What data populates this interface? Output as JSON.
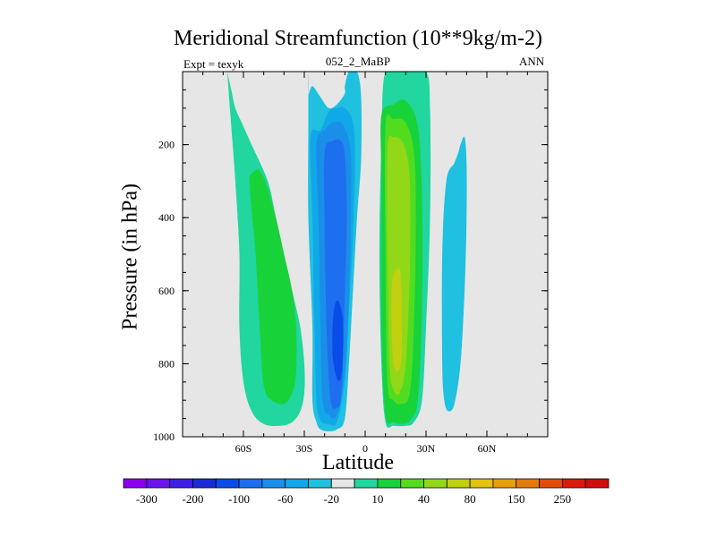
{
  "chart_data": {
    "type": "contour",
    "title": "Meridional Streamfunction (10**9kg/m-2)",
    "left_string": "Expt = texyk",
    "center_string": "052_2_MaBP",
    "right_string": "ANN",
    "xlabel": "Latitude",
    "ylabel": "Pressure (in hPa)",
    "xlim": [
      -90,
      90
    ],
    "ylim": [
      1000,
      0
    ],
    "x_ticks": [
      {
        "value": -60,
        "label": "60S"
      },
      {
        "value": -30,
        "label": "30S"
      },
      {
        "value": 0,
        "label": "0"
      },
      {
        "value": 30,
        "label": "30N"
      },
      {
        "value": 60,
        "label": "60N"
      }
    ],
    "y_ticks": [
      {
        "value": 200,
        "label": "200"
      },
      {
        "value": 400,
        "label": "400"
      },
      {
        "value": 600,
        "label": "600"
      },
      {
        "value": 800,
        "label": "800"
      },
      {
        "value": 1000,
        "label": "1000"
      }
    ],
    "missing_color": "#e6e6e6",
    "colorbar": {
      "levels": [
        -300,
        -250,
        -200,
        -150,
        -100,
        -80,
        -60,
        -40,
        -20,
        -10,
        10,
        20,
        40,
        60,
        80,
        100,
        150,
        200,
        250,
        300
      ],
      "labels": [
        "-300",
        "-200",
        "-100",
        "-60",
        "-20",
        "10",
        "40",
        "80",
        "150",
        "250"
      ],
      "colors": [
        "#8c00f0",
        "#6a12ec",
        "#3c1ee8",
        "#1a2ad8",
        "#0a4ce8",
        "#1e6ef0",
        "#1a8ee8",
        "#10a8e8",
        "#20c0e0",
        "#e6e6e6",
        "#22d6a0",
        "#18d23a",
        "#52dc20",
        "#92d818",
        "#c2d010",
        "#e2c20c",
        "#e8a00a",
        "#e47c0a",
        "#e24c0a",
        "#dc1a0a",
        "#d00c0c"
      ]
    },
    "cells": [
      {
        "name": "southern-positive-cell",
        "color_index": 10,
        "lat": [
          -68,
          -66,
          -64,
          -60,
          -56,
          -48,
          -44,
          -40,
          -36,
          -32,
          -30,
          -30,
          -32,
          -36,
          -42,
          -50,
          -56,
          -60,
          -62,
          -62,
          -64,
          -66,
          -68
        ],
        "p": [
          0,
          50,
          100,
          150,
          200,
          300,
          400,
          500,
          600,
          700,
          800,
          880,
          930,
          960,
          970,
          965,
          930,
          850,
          700,
          500,
          300,
          150,
          0
        ]
      },
      {
        "name": "southern-positive-core",
        "color_index": 11,
        "lat": [
          -56,
          -52,
          -48,
          -44,
          -40,
          -36,
          -34,
          -34,
          -36,
          -40,
          -46,
          -50,
          -52,
          -54,
          -56,
          -57
        ],
        "p": [
          280,
          270,
          320,
          400,
          500,
          600,
          700,
          820,
          880,
          910,
          900,
          860,
          700,
          500,
          380,
          300
        ]
      },
      {
        "name": "southern-negative-outer",
        "color_index": 8,
        "lat": [
          -28,
          -28,
          -26,
          -22,
          -18,
          -14,
          -10,
          -10,
          -8,
          -4,
          -2,
          -2,
          -4,
          -6,
          -8,
          -10,
          -14,
          -18,
          -22,
          -24,
          -26,
          -26,
          -28,
          -28
        ],
        "p": [
          0,
          60,
          40,
          70,
          100,
          90,
          60,
          40,
          0,
          0,
          70,
          240,
          400,
          600,
          800,
          950,
          980,
          985,
          980,
          960,
          900,
          700,
          400,
          150
        ]
      },
      {
        "name": "southern-negative-2",
        "color_index": 7,
        "lat": [
          -27,
          -22,
          -18,
          -14,
          -10,
          -6,
          -5,
          -6,
          -8,
          -10,
          -14,
          -18,
          -22,
          -24,
          -25,
          -26
        ],
        "p": [
          180,
          160,
          110,
          100,
          100,
          140,
          250,
          450,
          650,
          850,
          960,
          965,
          955,
          900,
          700,
          400
        ]
      },
      {
        "name": "southern-negative-3",
        "color_index": 6,
        "lat": [
          -24,
          -20,
          -16,
          -12,
          -9,
          -7,
          -7,
          -8,
          -10,
          -14,
          -18,
          -21,
          -22,
          -23
        ],
        "p": [
          200,
          160,
          140,
          140,
          170,
          230,
          400,
          620,
          820,
          940,
          940,
          900,
          700,
          400
        ]
      },
      {
        "name": "southern-negative-4",
        "color_index": 5,
        "lat": [
          -20,
          -16,
          -12,
          -10,
          -9,
          -10,
          -11,
          -12,
          -14,
          -17,
          -19,
          -20
        ],
        "p": [
          220,
          190,
          190,
          230,
          400,
          600,
          800,
          900,
          920,
          900,
          700,
          400
        ]
      },
      {
        "name": "southern-negative-core",
        "color_index": 4,
        "lat": [
          -15,
          -13,
          -11,
          -11,
          -12,
          -14,
          -16,
          -16
        ],
        "p": [
          640,
          630,
          680,
          780,
          840,
          840,
          780,
          700
        ]
      },
      {
        "name": "northern-positive-outer",
        "color_index": 10,
        "lat": [
          10,
          20,
          30,
          32,
          32,
          30,
          28,
          24,
          20,
          14,
          10,
          8,
          7,
          8
        ],
        "p": [
          0,
          0,
          0,
          100,
          400,
          700,
          900,
          960,
          970,
          970,
          960,
          800,
          500,
          200
        ]
      },
      {
        "name": "northern-positive-2",
        "color_index": 11,
        "lat": [
          8,
          14,
          20,
          26,
          28,
          28,
          26,
          22,
          18,
          14,
          10,
          8,
          8
        ],
        "p": [
          120,
          90,
          80,
          150,
          350,
          650,
          900,
          955,
          965,
          960,
          940,
          700,
          300
        ]
      },
      {
        "name": "northern-positive-3",
        "color_index": 12,
        "lat": [
          10,
          14,
          20,
          24,
          25,
          24,
          22,
          18,
          14,
          11,
          10
        ],
        "p": [
          150,
          130,
          140,
          220,
          400,
          700,
          880,
          910,
          900,
          850,
          500
        ]
      },
      {
        "name": "northern-positive-4",
        "color_index": 13,
        "lat": [
          11,
          14,
          19,
          22,
          22,
          20,
          17,
          14,
          12,
          11
        ],
        "p": [
          210,
          180,
          200,
          300,
          550,
          800,
          880,
          870,
          800,
          500
        ]
      },
      {
        "name": "northern-positive-core",
        "color_index": 14,
        "lat": [
          14,
          17,
          18,
          18,
          16,
          14,
          13,
          13
        ],
        "p": [
          560,
          540,
          620,
          780,
          820,
          800,
          700,
          600
        ]
      },
      {
        "name": "northern-negative-cell",
        "color_index": 8,
        "lat": [
          47,
          49,
          50,
          50,
          49,
          47,
          44,
          41,
          39,
          38,
          38,
          40,
          44,
          46
        ],
        "p": [
          200,
          180,
          250,
          400,
          600,
          800,
          910,
          930,
          900,
          800,
          500,
          300,
          250,
          220
        ]
      }
    ]
  }
}
